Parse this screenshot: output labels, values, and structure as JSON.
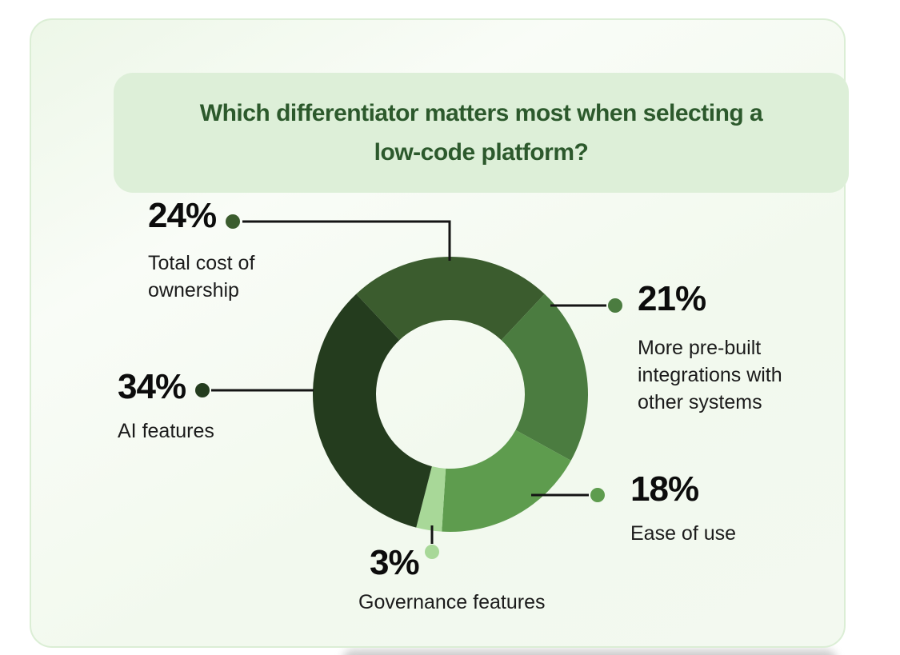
{
  "page": {
    "background_color": "#ffffff"
  },
  "card": {
    "background_colors": [
      "#edf7e8",
      "#f2f9ee"
    ],
    "border_color": "#dbeed5",
    "title_box_color": "#ddefd8",
    "title_color": "#2c592c",
    "title": "Which differentiator matters most when selecting a low-code platform?",
    "title_lines": [
      "Which differentiator matters most when selecting a",
      "low-code platform?"
    ]
  },
  "chart_data": {
    "type": "pie",
    "variant": "donut",
    "title": "Which differentiator matters most when selecting a low-code platform?",
    "unit": "percent",
    "total": 100,
    "direction": "clockwise",
    "start_angle_deg": -43.2,
    "inner_radius_ratio": 0.54,
    "legend_position": "callouts",
    "callout_line_color": "#141414",
    "segments": [
      {
        "label": "Total cost of ownership",
        "value": 24,
        "pct_label": "24%",
        "color": "#3b5c2e"
      },
      {
        "label": "More pre-built integrations with other systems",
        "value": 21,
        "pct_label": "21%",
        "color": "#4b7c40"
      },
      {
        "label": "Ease of use",
        "value": 18,
        "pct_label": "18%",
        "color": "#5e9c4e"
      },
      {
        "label": "Governance features",
        "value": 3,
        "pct_label": "3%",
        "color": "#a8d898"
      },
      {
        "label": "AI features",
        "value": 34,
        "pct_label": "34%",
        "color": "#243c1e"
      }
    ]
  }
}
